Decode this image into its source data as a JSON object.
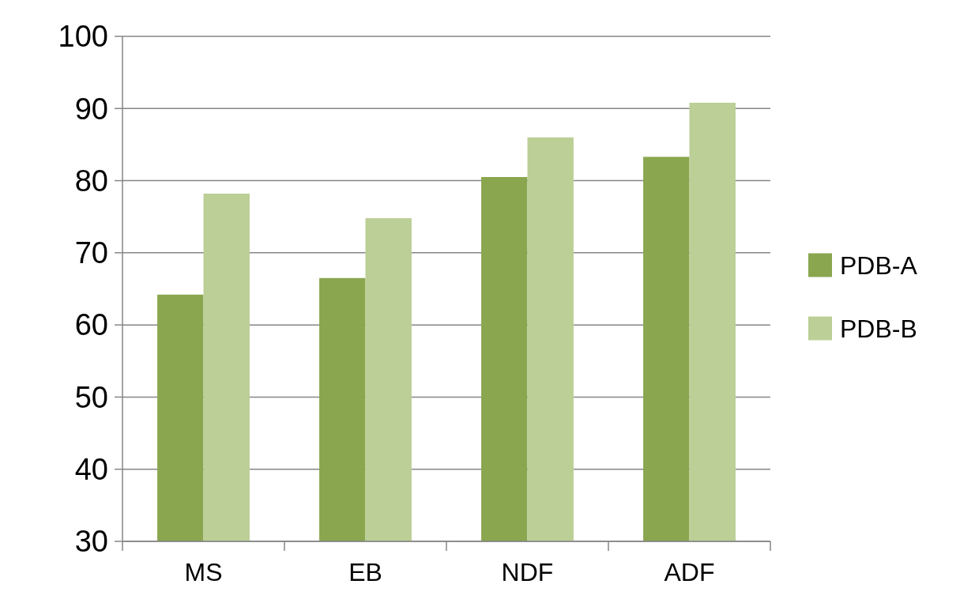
{
  "chart_data": {
    "type": "bar",
    "categories": [
      "MS",
      "EB",
      "NDF",
      "ADF"
    ],
    "series": [
      {
        "name": "PDB-A",
        "color": "#8aa64f",
        "values": [
          64.2,
          66.5,
          80.5,
          83.3
        ]
      },
      {
        "name": "PDB-B",
        "color": "#bbcf96",
        "values": [
          78.2,
          74.8,
          86.0,
          90.8
        ]
      }
    ],
    "ylim": [
      30,
      100
    ],
    "yticks": [
      30,
      40,
      50,
      60,
      70,
      80,
      90,
      100
    ],
    "grid": "y",
    "legend": "right"
  }
}
